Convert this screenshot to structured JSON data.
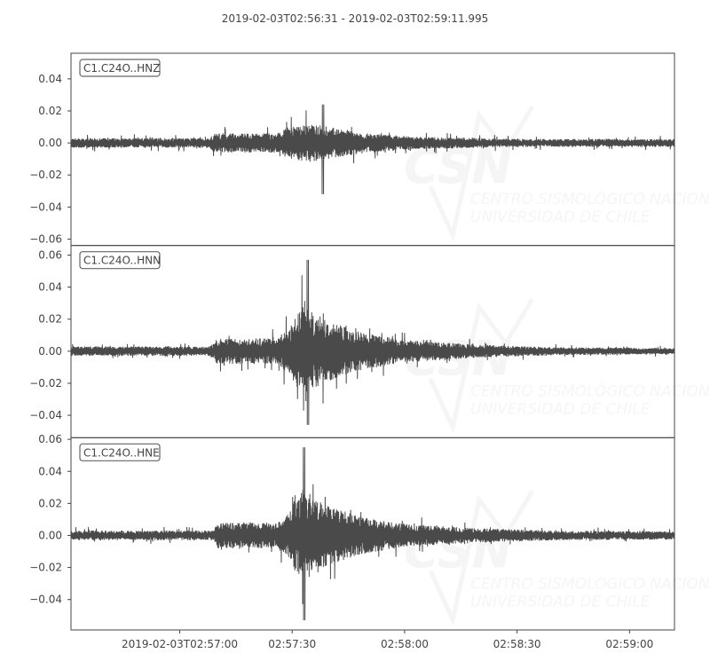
{
  "chart_data": {
    "type": "line",
    "title": "2019-02-03T02:56:31  -  2019-02-03T02:59:11.995",
    "xlim": [
      "2019-02-03T02:56:31",
      "2019-02-03T02:59:11.995"
    ],
    "x_ticks": [
      {
        "time": "02:57:00",
        "label": "2019-02-03T02:57:00"
      },
      {
        "time": "02:57:30",
        "label": "02:57:30"
      },
      {
        "time": "02:58:00",
        "label": "02:58:00"
      },
      {
        "time": "02:58:30",
        "label": "02:58:30"
      },
      {
        "time": "02:59:00",
        "label": "02:59:00"
      }
    ],
    "grid": false,
    "line_color": "#4a4a4a",
    "watermark": {
      "logo": "CSN",
      "line1": "CENTRO SISMOLÓGICO NACIONAL",
      "line2": "UNIVERSIDAD DE CHILE"
    },
    "traces": [
      {
        "label": "C1.C24O..HNZ",
        "ylim": [
          -0.064,
          0.056
        ],
        "y_ticks": [
          0.04,
          0.02,
          0.0,
          -0.02,
          -0.04,
          -0.06
        ],
        "y_tick_labels": [
          "0.04",
          "0.02",
          "0.00",
          "−0.02",
          "−0.04",
          "−0.06"
        ],
        "peak_max": 0.024,
        "peak_min": -0.032,
        "peak_time": "02:57:38",
        "envelope": [
          [
            "02:56:31",
            0.003
          ],
          [
            "02:57:08",
            0.003
          ],
          [
            "02:57:09",
            0.006
          ],
          [
            "02:57:26",
            0.006
          ],
          [
            "02:57:29",
            0.01
          ],
          [
            "02:57:35",
            0.012
          ],
          [
            "02:57:40",
            0.01
          ],
          [
            "02:57:50",
            0.006
          ],
          [
            "02:58:02",
            0.004
          ],
          [
            "02:58:30",
            0.0025
          ],
          [
            "02:59:11",
            0.0025
          ]
        ]
      },
      {
        "label": "C1.C24O..HNN",
        "ylim": [
          -0.054,
          0.066
        ],
        "y_ticks": [
          0.06,
          0.04,
          0.02,
          0.0,
          -0.02,
          -0.04
        ],
        "y_tick_labels": [
          "0.06",
          "0.04",
          "0.02",
          "0.00",
          "−0.02",
          "−0.04"
        ],
        "peak_max": 0.057,
        "peak_min": -0.046,
        "peak_time": "02:57:34",
        "envelope": [
          [
            "02:56:31",
            0.003
          ],
          [
            "02:57:08",
            0.003
          ],
          [
            "02:57:10",
            0.008
          ],
          [
            "02:57:26",
            0.008
          ],
          [
            "02:57:29",
            0.015
          ],
          [
            "02:57:33",
            0.028
          ],
          [
            "02:57:38",
            0.02
          ],
          [
            "02:57:48",
            0.012
          ],
          [
            "02:58:00",
            0.007
          ],
          [
            "02:58:20",
            0.004
          ],
          [
            "02:58:40",
            0.0025
          ],
          [
            "02:59:11",
            0.002
          ]
        ]
      },
      {
        "label": "C1.C24O..HNE",
        "ylim": [
          -0.059,
          0.061
        ],
        "y_ticks": [
          0.06,
          0.04,
          0.02,
          0.0,
          -0.02,
          -0.04
        ],
        "y_tick_labels": [
          "0.06",
          "0.04",
          "0.02",
          "0.00",
          "−0.02",
          "−0.04"
        ],
        "peak_max": 0.055,
        "peak_min": -0.053,
        "peak_time": "02:57:33",
        "envelope": [
          [
            "02:56:31",
            0.003
          ],
          [
            "02:57:09",
            0.003
          ],
          [
            "02:57:10",
            0.008
          ],
          [
            "02:57:26",
            0.008
          ],
          [
            "02:57:29",
            0.016
          ],
          [
            "02:57:33",
            0.03
          ],
          [
            "02:57:38",
            0.02
          ],
          [
            "02:57:48",
            0.012
          ],
          [
            "02:58:00",
            0.007
          ],
          [
            "02:58:20",
            0.0045
          ],
          [
            "02:58:40",
            0.003
          ],
          [
            "02:59:11",
            0.0025
          ]
        ]
      }
    ]
  }
}
